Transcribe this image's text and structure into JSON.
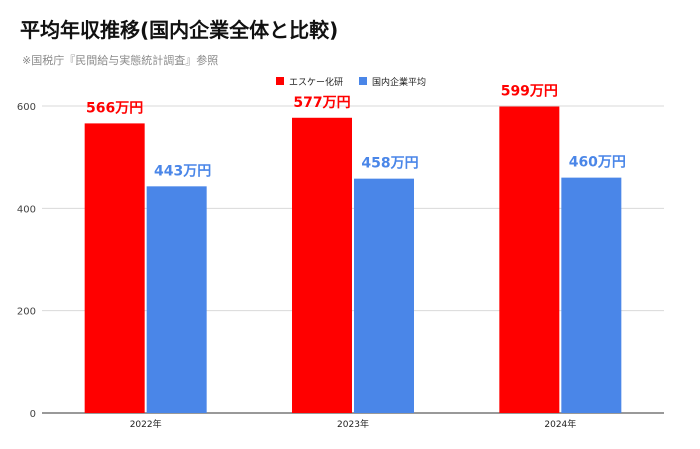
{
  "title": "平均年収推移(国内企業全体と比較)",
  "subtitle": "※国税庁『民間給与実態統計調査』参照",
  "chart_data": {
    "type": "bar",
    "categories": [
      "2022年",
      "2023年",
      "2024年"
    ],
    "series": [
      {
        "name": "エスケー化研",
        "color": "#ff0000",
        "values": [
          566,
          577,
          599
        ],
        "labels": [
          "566万円",
          "577万円",
          "599万円"
        ]
      },
      {
        "name": "国内企業平均",
        "color": "#4a86e8",
        "values": [
          443,
          458,
          460
        ],
        "labels": [
          "443万円",
          "458万円",
          "460万円"
        ]
      }
    ],
    "yticks": [
      0,
      200,
      400,
      600
    ],
    "ylim": [
      0,
      600
    ],
    "grid": true,
    "legend_position": "top"
  }
}
